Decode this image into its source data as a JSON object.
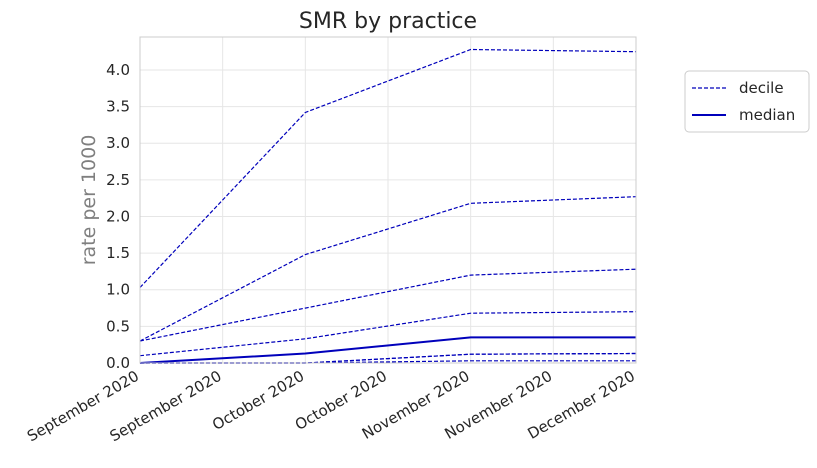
{
  "chart_data": {
    "type": "line",
    "title": "SMR by practice",
    "xlabel": "",
    "ylabel": "rate per 1000",
    "x": [
      "2020-09-01",
      "2020-10-01",
      "2020-11-01",
      "2020-12-01"
    ],
    "x_tick_labels": [
      "September 2020",
      "September 2020",
      "October 2020",
      "October 2020",
      "November 2020",
      "November 2020",
      "December 2020"
    ],
    "ylim": [
      0,
      4.45
    ],
    "y_ticks": [
      "0.0",
      "0.5",
      "1.0",
      "1.5",
      "2.0",
      "2.5",
      "3.0",
      "3.5",
      "4.0"
    ],
    "grid": true,
    "legend": {
      "placement": "right",
      "entries": [
        {
          "label": "decile",
          "style": "dashed"
        },
        {
          "label": "median",
          "style": "solid"
        }
      ]
    },
    "series": [
      {
        "kind": "decile",
        "values": [
          0.0,
          0.0,
          0.03,
          0.03
        ]
      },
      {
        "kind": "decile",
        "values": [
          0.0,
          0.0,
          0.12,
          0.13
        ]
      },
      {
        "kind": "decile",
        "values": [
          0.0,
          0.0,
          0.12,
          0.13
        ]
      },
      {
        "kind": "decile",
        "values": [
          0.1,
          0.33,
          0.68,
          0.7
        ]
      },
      {
        "kind": "decile",
        "values": [
          0.3,
          0.75,
          1.2,
          1.28
        ]
      },
      {
        "kind": "decile",
        "values": [
          0.3,
          1.48,
          2.18,
          2.27
        ]
      },
      {
        "kind": "decile",
        "values": [
          1.03,
          3.42,
          4.28,
          4.25
        ]
      },
      {
        "kind": "median",
        "values": [
          0.0,
          0.13,
          0.35,
          0.35
        ]
      }
    ],
    "line_color": "#0000bb"
  }
}
